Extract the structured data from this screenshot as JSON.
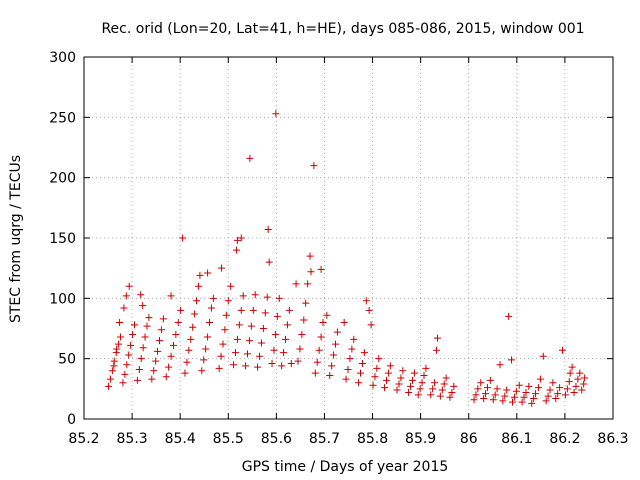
{
  "chart_data": {
    "type": "scatter",
    "title": "Rec. orid (Lon=20, Lat=41, h=HE), days 085-086, 2015, window 001",
    "xlabel": "GPS time / Days of year 2015",
    "ylabel": "STEC from uqrg / TECUs",
    "xlim": [
      85.2,
      86.3
    ],
    "ylim": [
      0,
      300
    ],
    "x_ticks": [
      "85.2",
      "85.3",
      "85.4",
      "85.5",
      "85.6",
      "85.7",
      "85.8",
      "85.9",
      "86",
      "86.1",
      "86.2",
      "86.3"
    ],
    "y_ticks": [
      "0",
      "50",
      "100",
      "150",
      "200",
      "250",
      "300"
    ],
    "grid": true,
    "marker": "+",
    "color": "#cc0000",
    "points": [
      [
        85.251,
        27
      ],
      [
        85.255,
        33
      ],
      [
        85.259,
        40
      ],
      [
        85.263,
        48
      ],
      [
        85.267,
        55
      ],
      [
        85.272,
        62
      ],
      [
        85.276,
        68
      ],
      [
        85.281,
        30
      ],
      [
        85.285,
        37
      ],
      [
        85.289,
        45
      ],
      [
        85.293,
        53
      ],
      [
        85.297,
        61
      ],
      [
        85.301,
        70
      ],
      [
        85.305,
        78
      ],
      [
        85.283,
        92
      ],
      [
        85.288,
        102
      ],
      [
        85.294,
        110
      ],
      [
        85.262,
        44
      ],
      [
        85.268,
        58
      ],
      [
        85.274,
        80
      ],
      [
        85.311,
        32
      ],
      [
        85.315,
        41
      ],
      [
        85.319,
        50
      ],
      [
        85.323,
        59
      ],
      [
        85.327,
        68
      ],
      [
        85.331,
        77
      ],
      [
        85.335,
        84
      ],
      [
        85.322,
        94
      ],
      [
        85.318,
        103
      ],
      [
        85.341,
        33
      ],
      [
        85.345,
        40
      ],
      [
        85.349,
        48
      ],
      [
        85.353,
        56
      ],
      [
        85.357,
        65
      ],
      [
        85.361,
        74
      ],
      [
        85.365,
        83
      ],
      [
        85.381,
        102
      ],
      [
        85.371,
        35
      ],
      [
        85.376,
        43
      ],
      [
        85.381,
        52
      ],
      [
        85.386,
        61
      ],
      [
        85.391,
        70
      ],
      [
        85.396,
        80
      ],
      [
        85.401,
        90
      ],
      [
        85.405,
        150
      ],
      [
        85.41,
        38
      ],
      [
        85.414,
        47
      ],
      [
        85.418,
        57
      ],
      [
        85.422,
        66
      ],
      [
        85.426,
        76
      ],
      [
        85.43,
        87
      ],
      [
        85.434,
        98
      ],
      [
        85.438,
        110
      ],
      [
        85.441,
        119
      ],
      [
        85.445,
        40
      ],
      [
        85.449,
        49
      ],
      [
        85.453,
        58
      ],
      [
        85.457,
        68
      ],
      [
        85.461,
        80
      ],
      [
        85.465,
        92
      ],
      [
        85.469,
        100
      ],
      [
        85.457,
        121
      ],
      [
        85.481,
        42
      ],
      [
        85.485,
        52
      ],
      [
        85.489,
        62
      ],
      [
        85.493,
        74
      ],
      [
        85.496,
        86
      ],
      [
        85.5,
        98
      ],
      [
        85.486,
        125
      ],
      [
        85.505,
        110
      ],
      [
        85.511,
        45
      ],
      [
        85.515,
        55
      ],
      [
        85.519,
        66
      ],
      [
        85.523,
        78
      ],
      [
        85.527,
        90
      ],
      [
        85.531,
        102
      ],
      [
        85.517,
        140
      ],
      [
        85.519,
        148
      ],
      [
        85.527,
        150
      ],
      [
        85.536,
        44
      ],
      [
        85.54,
        54
      ],
      [
        85.544,
        65
      ],
      [
        85.548,
        77
      ],
      [
        85.552,
        90
      ],
      [
        85.545,
        216
      ],
      [
        85.556,
        103
      ],
      [
        85.561,
        43
      ],
      [
        85.565,
        52
      ],
      [
        85.569,
        63
      ],
      [
        85.573,
        75
      ],
      [
        85.577,
        88
      ],
      [
        85.581,
        101
      ],
      [
        85.585,
        130
      ],
      [
        85.583,
        157
      ],
      [
        85.591,
        46
      ],
      [
        85.595,
        57
      ],
      [
        85.598,
        70
      ],
      [
        85.599,
        253
      ],
      [
        85.602,
        85
      ],
      [
        85.606,
        100
      ],
      [
        85.611,
        44
      ],
      [
        85.615,
        55
      ],
      [
        85.619,
        66
      ],
      [
        85.623,
        78
      ],
      [
        85.627,
        90
      ],
      [
        85.641,
        112
      ],
      [
        85.631,
        46
      ],
      [
        85.645,
        48
      ],
      [
        85.649,
        58
      ],
      [
        85.653,
        70
      ],
      [
        85.657,
        82
      ],
      [
        85.661,
        96
      ],
      [
        85.665,
        112
      ],
      [
        85.67,
        135
      ],
      [
        85.672,
        122
      ],
      [
        85.678,
        210
      ],
      [
        85.681,
        38
      ],
      [
        85.685,
        47
      ],
      [
        85.689,
        57
      ],
      [
        85.693,
        68
      ],
      [
        85.697,
        80
      ],
      [
        85.693,
        124
      ],
      [
        85.705,
        86
      ],
      [
        85.711,
        36
      ],
      [
        85.715,
        44
      ],
      [
        85.719,
        53
      ],
      [
        85.723,
        62
      ],
      [
        85.727,
        72
      ],
      [
        85.741,
        80
      ],
      [
        85.745,
        33
      ],
      [
        85.749,
        41
      ],
      [
        85.753,
        50
      ],
      [
        85.757,
        58
      ],
      [
        85.761,
        66
      ],
      [
        85.771,
        30
      ],
      [
        85.775,
        38
      ],
      [
        85.779,
        46
      ],
      [
        85.783,
        55
      ],
      [
        85.787,
        98
      ],
      [
        85.793,
        90
      ],
      [
        85.797,
        78
      ],
      [
        85.801,
        28
      ],
      [
        85.805,
        35
      ],
      [
        85.809,
        42
      ],
      [
        85.813,
        50
      ],
      [
        85.825,
        26
      ],
      [
        85.829,
        32
      ],
      [
        85.833,
        38
      ],
      [
        85.837,
        44
      ],
      [
        85.851,
        24
      ],
      [
        85.855,
        29
      ],
      [
        85.859,
        34
      ],
      [
        85.863,
        40
      ],
      [
        85.875,
        22
      ],
      [
        85.879,
        27
      ],
      [
        85.883,
        32
      ],
      [
        85.887,
        38
      ],
      [
        85.895,
        20
      ],
      [
        85.899,
        25
      ],
      [
        85.903,
        30
      ],
      [
        85.907,
        36
      ],
      [
        85.911,
        42
      ],
      [
        85.921,
        20
      ],
      [
        85.925,
        25
      ],
      [
        85.929,
        30
      ],
      [
        85.933,
        57
      ],
      [
        85.935,
        67
      ],
      [
        85.941,
        19
      ],
      [
        85.945,
        24
      ],
      [
        85.949,
        29
      ],
      [
        85.953,
        34
      ],
      [
        85.961,
        18
      ],
      [
        85.965,
        22
      ],
      [
        85.969,
        27
      ],
      [
        86.011,
        16
      ],
      [
        86.015,
        20
      ],
      [
        86.019,
        25
      ],
      [
        86.025,
        30
      ],
      [
        86.031,
        17
      ],
      [
        86.035,
        21
      ],
      [
        86.039,
        26
      ],
      [
        86.045,
        32
      ],
      [
        86.051,
        16
      ],
      [
        86.055,
        20
      ],
      [
        86.059,
        25
      ],
      [
        86.065,
        45
      ],
      [
        86.071,
        15
      ],
      [
        86.075,
        19
      ],
      [
        86.079,
        24
      ],
      [
        86.083,
        85
      ],
      [
        86.089,
        49
      ],
      [
        86.091,
        14
      ],
      [
        86.095,
        18
      ],
      [
        86.099,
        23
      ],
      [
        86.105,
        28
      ],
      [
        86.111,
        14
      ],
      [
        86.115,
        18
      ],
      [
        86.119,
        22
      ],
      [
        86.125,
        27
      ],
      [
        86.131,
        13
      ],
      [
        86.135,
        17
      ],
      [
        86.139,
        21
      ],
      [
        86.145,
        26
      ],
      [
        86.149,
        33
      ],
      [
        86.155,
        52
      ],
      [
        86.161,
        15
      ],
      [
        86.165,
        19
      ],
      [
        86.169,
        24
      ],
      [
        86.175,
        30
      ],
      [
        86.181,
        17
      ],
      [
        86.185,
        21
      ],
      [
        86.189,
        26
      ],
      [
        86.195,
        57
      ],
      [
        86.201,
        20
      ],
      [
        86.205,
        25
      ],
      [
        86.209,
        31
      ],
      [
        86.211,
        38
      ],
      [
        86.215,
        43
      ],
      [
        86.219,
        22
      ],
      [
        86.223,
        27
      ],
      [
        86.227,
        33
      ],
      [
        86.231,
        38
      ],
      [
        86.235,
        24
      ],
      [
        86.239,
        29
      ],
      [
        86.241,
        34
      ]
    ]
  }
}
